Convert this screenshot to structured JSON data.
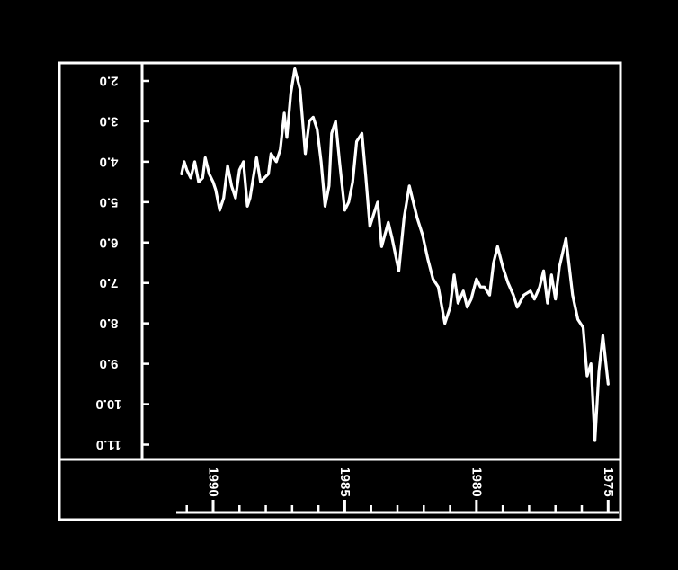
{
  "chart_data": {
    "type": "line",
    "orientation": "rotated 180 degrees (upside-down image)",
    "title": "",
    "xlabel": "",
    "ylabel": "",
    "x_tick_labels": [
      "1975",
      "1980",
      "1985",
      "1990"
    ],
    "x_ticks": [
      1975,
      1980,
      1985,
      1990
    ],
    "xlim": [
      1974.6,
      1991.4
    ],
    "y_tick_labels": [
      "2.0",
      "3.0",
      "4.0",
      "5.0",
      "6.0",
      "7.0",
      "8.0",
      "9.0",
      "10.0",
      "11.0"
    ],
    "y_ticks": [
      2,
      3,
      4,
      5,
      6,
      7,
      8,
      9,
      10,
      11
    ],
    "ylim": [
      1.6,
      11.3
    ],
    "grid": false,
    "line_color": "#ffffff",
    "background_color": "#000000",
    "series": [
      {
        "x": [
          1975.0,
          1975.2,
          1975.35,
          1975.5,
          1975.65,
          1975.8,
          1975.95,
          1976.15,
          1976.35,
          1976.6,
          1976.85,
          1977.0,
          1977.15,
          1977.3,
          1977.45,
          1977.6,
          1977.8,
          1977.95,
          1978.2,
          1978.45,
          1978.6,
          1978.8,
          1979.0,
          1979.2,
          1979.35,
          1979.5,
          1979.7,
          1979.85,
          1980.0,
          1980.2,
          1980.35,
          1980.5,
          1980.7,
          1980.85,
          1981.0,
          1981.2,
          1981.45,
          1981.65,
          1981.85,
          1982.05,
          1982.25,
          1982.55,
          1982.75,
          1982.95,
          1983.2,
          1983.35,
          1983.6,
          1983.75,
          1983.9,
          1984.05,
          1984.2,
          1984.35,
          1984.55,
          1984.7,
          1984.85,
          1985.0,
          1985.2,
          1985.35,
          1985.5,
          1985.6,
          1985.75,
          1985.9,
          1986.05,
          1986.2,
          1986.35,
          1986.5,
          1986.7,
          1986.9,
          1987.05,
          1987.2,
          1987.3,
          1987.45,
          1987.6,
          1987.8,
          1987.9,
          1988.05,
          1988.2,
          1988.35,
          1988.5,
          1988.6,
          1988.7,
          1988.85,
          1989.0,
          1989.15,
          1989.3,
          1989.45,
          1989.6,
          1989.75,
          1989.9,
          1990.0,
          1990.15,
          1990.3,
          1990.4,
          1990.55,
          1990.7,
          1990.85,
          1991.0,
          1991.1,
          1991.2
        ],
        "y": [
          9.5,
          8.3,
          9.2,
          10.9,
          9.0,
          9.3,
          8.1,
          7.9,
          7.3,
          5.9,
          6.6,
          7.4,
          6.8,
          7.5,
          6.7,
          7.1,
          7.4,
          7.2,
          7.3,
          7.6,
          7.3,
          7.0,
          6.6,
          6.1,
          6.5,
          7.3,
          7.1,
          7.1,
          6.9,
          7.4,
          7.6,
          7.2,
          7.5,
          6.8,
          7.6,
          8.0,
          7.1,
          6.9,
          6.4,
          5.8,
          5.4,
          4.6,
          5.4,
          6.7,
          5.9,
          5.5,
          6.1,
          5.0,
          5.3,
          5.6,
          4.4,
          3.3,
          3.5,
          4.5,
          5.0,
          5.2,
          4.0,
          3.0,
          3.3,
          4.6,
          5.1,
          4.0,
          3.2,
          2.9,
          3.0,
          3.8,
          2.2,
          1.7,
          2.3,
          3.4,
          2.8,
          3.7,
          4.0,
          3.8,
          4.3,
          4.4,
          4.5,
          3.9,
          4.5,
          4.9,
          5.1,
          4.0,
          4.2,
          4.9,
          4.6,
          4.1,
          4.9,
          5.2,
          4.7,
          4.5,
          4.3,
          3.9,
          4.4,
          4.5,
          4.0,
          4.4,
          4.2,
          4.0,
          4.3
        ]
      }
    ]
  }
}
